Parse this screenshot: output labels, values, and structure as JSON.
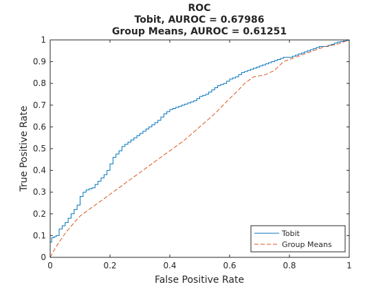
{
  "chart_data": {
    "type": "line",
    "title_lines": [
      "ROC",
      "Tobit, AUROC = 0.67986",
      "Group Means, AUROC = 0.61251"
    ],
    "xlabel": "False Positive Rate",
    "ylabel": "True Positive Rate",
    "xlim": [
      0,
      1
    ],
    "ylim": [
      0,
      1
    ],
    "x_ticks": [
      0,
      0.2,
      0.4,
      0.6,
      0.8,
      1
    ],
    "x_tick_labels": [
      "0",
      "0.2",
      "0.4",
      "0.6",
      "0.8",
      "1"
    ],
    "y_ticks": [
      0,
      0.1,
      0.2,
      0.3,
      0.4,
      0.5,
      0.6,
      0.7,
      0.8,
      0.9,
      1
    ],
    "y_tick_labels": [
      "0",
      "0.1",
      "0.2",
      "0.3",
      "0.4",
      "0.5",
      "0.6",
      "0.7",
      "0.8",
      "0.9",
      "1"
    ],
    "grid": false,
    "legend_position": "bottom-right",
    "series": [
      {
        "name": "Tobit",
        "color": "#0072BD",
        "style": "solid-step",
        "points": [
          [
            0,
            0
          ],
          [
            0,
            0.07
          ],
          [
            0.005,
            0.09
          ],
          [
            0.02,
            0.1
          ],
          [
            0.03,
            0.13
          ],
          [
            0.05,
            0.16
          ],
          [
            0.07,
            0.2
          ],
          [
            0.09,
            0.24
          ],
          [
            0.1,
            0.28
          ],
          [
            0.11,
            0.3
          ],
          [
            0.12,
            0.31
          ],
          [
            0.14,
            0.32
          ],
          [
            0.16,
            0.35
          ],
          [
            0.18,
            0.38
          ],
          [
            0.19,
            0.4
          ],
          [
            0.2,
            0.43
          ],
          [
            0.21,
            0.46
          ],
          [
            0.23,
            0.49
          ],
          [
            0.24,
            0.51
          ],
          [
            0.26,
            0.53
          ],
          [
            0.28,
            0.55
          ],
          [
            0.3,
            0.57
          ],
          [
            0.32,
            0.59
          ],
          [
            0.34,
            0.61
          ],
          [
            0.36,
            0.63
          ],
          [
            0.38,
            0.66
          ],
          [
            0.4,
            0.68
          ],
          [
            0.42,
            0.69
          ],
          [
            0.44,
            0.7
          ],
          [
            0.46,
            0.71
          ],
          [
            0.48,
            0.72
          ],
          [
            0.5,
            0.74
          ],
          [
            0.52,
            0.75
          ],
          [
            0.54,
            0.77
          ],
          [
            0.56,
            0.79
          ],
          [
            0.58,
            0.8
          ],
          [
            0.6,
            0.82
          ],
          [
            0.62,
            0.83
          ],
          [
            0.64,
            0.85
          ],
          [
            0.66,
            0.86
          ],
          [
            0.68,
            0.87
          ],
          [
            0.7,
            0.88
          ],
          [
            0.72,
            0.89
          ],
          [
            0.74,
            0.9
          ],
          [
            0.76,
            0.91
          ],
          [
            0.78,
            0.92
          ],
          [
            0.8,
            0.92
          ],
          [
            0.82,
            0.93
          ],
          [
            0.84,
            0.94
          ],
          [
            0.86,
            0.95
          ],
          [
            0.88,
            0.96
          ],
          [
            0.9,
            0.97
          ],
          [
            0.92,
            0.97
          ],
          [
            0.94,
            0.98
          ],
          [
            0.96,
            0.99
          ],
          [
            0.98,
            0.995
          ],
          [
            1,
            1
          ]
        ]
      },
      {
        "name": "Group Means",
        "color": "#D95319",
        "style": "dashed",
        "points": [
          [
            0,
            0
          ],
          [
            0.02,
            0.05
          ],
          [
            0.05,
            0.11
          ],
          [
            0.08,
            0.16
          ],
          [
            0.1,
            0.19
          ],
          [
            0.15,
            0.24
          ],
          [
            0.2,
            0.29
          ],
          [
            0.25,
            0.34
          ],
          [
            0.3,
            0.39
          ],
          [
            0.35,
            0.44
          ],
          [
            0.4,
            0.49
          ],
          [
            0.45,
            0.54
          ],
          [
            0.5,
            0.6
          ],
          [
            0.55,
            0.66
          ],
          [
            0.6,
            0.73
          ],
          [
            0.63,
            0.77
          ],
          [
            0.65,
            0.8
          ],
          [
            0.68,
            0.83
          ],
          [
            0.72,
            0.84
          ],
          [
            0.75,
            0.86
          ],
          [
            0.78,
            0.9
          ],
          [
            0.8,
            0.91
          ],
          [
            0.84,
            0.93
          ],
          [
            0.88,
            0.95
          ],
          [
            0.92,
            0.97
          ],
          [
            0.96,
            0.98
          ],
          [
            1,
            1
          ]
        ]
      }
    ]
  }
}
